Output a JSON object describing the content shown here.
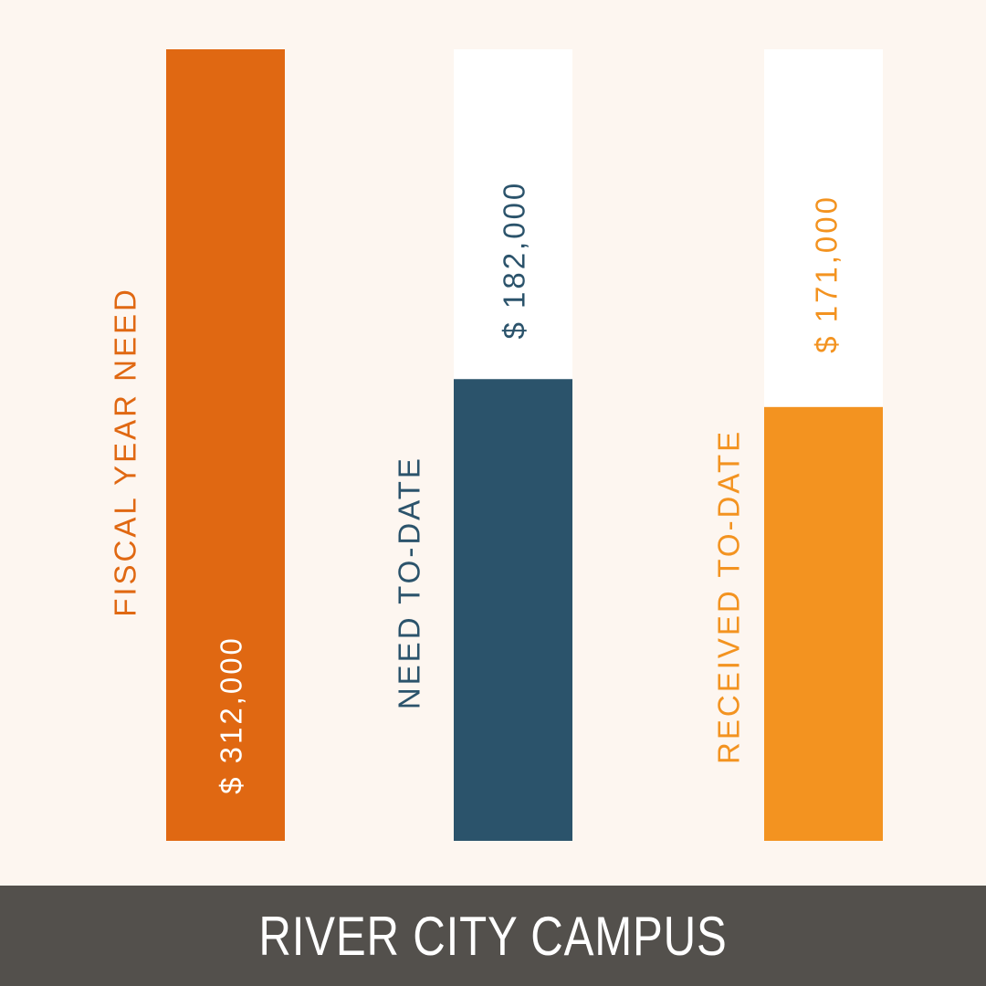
{
  "chart_data": {
    "type": "bar",
    "categories": [
      "FISCAL YEAR NEED",
      "NEED TO-DATE",
      "RECEIVED TO-DATE"
    ],
    "values": [
      312000,
      182000,
      171000
    ],
    "value_labels": [
      "$ 312,000",
      "$ 182,000",
      "$ 171,000"
    ],
    "colors": [
      "#e06812",
      "#2b536b",
      "#f39320"
    ],
    "track_color": "#ffffff",
    "ylim": [
      0,
      312000
    ],
    "grid": false,
    "legend": "none"
  },
  "footer": {
    "title": "RIVER CITY CAMPUS"
  }
}
